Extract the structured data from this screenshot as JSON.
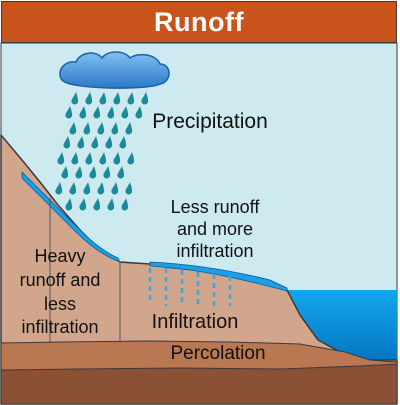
{
  "title": "Runoff",
  "labels": {
    "precipitation": "Precipitation",
    "less_runoff_line1": "Less runoff",
    "less_runoff_line2": "and more",
    "less_runoff_line3": "infiltration",
    "heavy_line1": "Heavy",
    "heavy_line2": "runoff and",
    "heavy_line3": "less",
    "heavy_line4": "infiltration",
    "infiltration": "Infiltration",
    "percolation": "Percolation"
  },
  "colors": {
    "title_bg": "#c8541c",
    "sky": "#cdeaf0",
    "soil": "#d2a68c",
    "percolation_layer": "#b97752",
    "bedrock": "#8a5134",
    "water": "#0a8fd8",
    "rain": "#1d8a9c",
    "cloud": "#3d8fd6"
  }
}
